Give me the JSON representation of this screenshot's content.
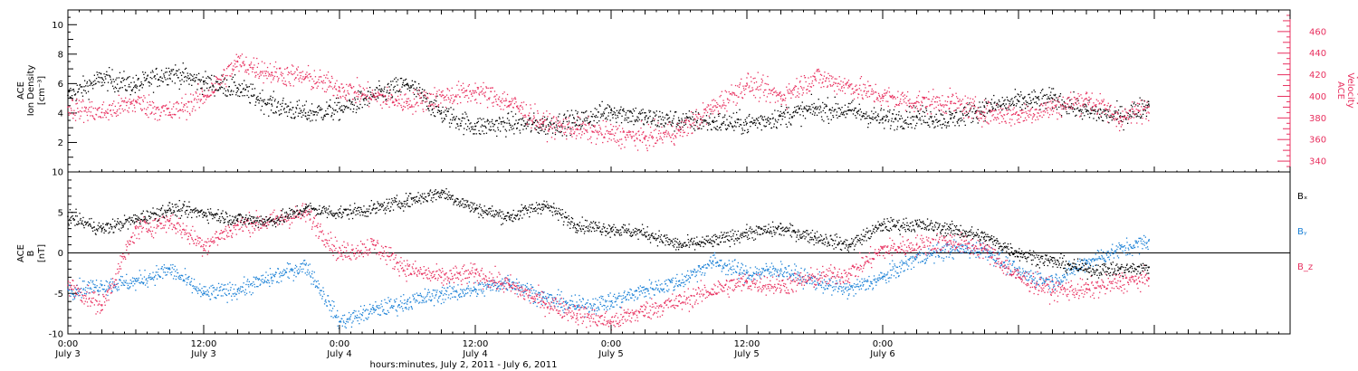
{
  "chart_data": [
    {
      "type": "scatter",
      "panel": "top",
      "ylabel_left": [
        "ACE",
        "Ion Density",
        "[cm⁻³]"
      ],
      "ylabel_right": [
        "ACE",
        "Velocity",
        "[km/s]"
      ],
      "left_axis": {
        "range": [
          0,
          11
        ],
        "ticks": [
          2,
          4,
          6,
          8,
          10
        ]
      },
      "right_axis": {
        "range": [
          330,
          480
        ],
        "ticks": [
          340,
          360,
          380,
          400,
          420,
          440,
          460
        ]
      },
      "series": [
        {
          "key": "density",
          "axis": "left",
          "color": "#000000",
          "x": [
            0,
            3,
            6,
            9,
            12,
            15,
            18,
            21,
            24,
            27,
            30,
            33,
            36,
            39,
            42,
            45,
            48,
            51,
            54,
            57,
            60,
            63,
            66,
            69,
            72,
            75,
            78,
            81,
            84,
            87,
            90,
            93,
            95.5
          ],
          "y": [
            5.2,
            6.4,
            5.9,
            6.8,
            6.1,
            5.7,
            4.6,
            4.0,
            4.3,
            5.2,
            6.0,
            4.0,
            3.1,
            3.3,
            3.2,
            3.5,
            4.2,
            3.7,
            3.5,
            3.4,
            3.3,
            3.8,
            4.3,
            4.2,
            3.6,
            3.8,
            3.6,
            4.4,
            4.8,
            5.0,
            4.1,
            3.8,
            4.6
          ]
        },
        {
          "key": "velocity",
          "axis": "right",
          "color": "#e8305f",
          "x": [
            0,
            3,
            6,
            9,
            12,
            15,
            18,
            21,
            24,
            27,
            30,
            33,
            36,
            39,
            42,
            45,
            48,
            51,
            54,
            57,
            60,
            63,
            66,
            69,
            72,
            75,
            78,
            81,
            84,
            87,
            90,
            93,
            95.5
          ],
          "y": [
            390,
            385,
            395,
            385,
            400,
            432,
            422,
            418,
            408,
            400,
            395,
            400,
            405,
            395,
            375,
            370,
            365,
            362,
            368,
            390,
            412,
            400,
            418,
            410,
            400,
            395,
            395,
            385,
            383,
            390,
            398,
            380,
            390
          ]
        }
      ]
    },
    {
      "type": "scatter",
      "panel": "bottom",
      "ylabel_left": [
        "ACE",
        "B",
        "[nT]"
      ],
      "y_axis": {
        "range": [
          -10,
          10
        ],
        "ticks": [
          -10,
          -5,
          0,
          5,
          10
        ]
      },
      "legend": [
        "Bₓ",
        "Bᵧ",
        "B_z"
      ],
      "series": [
        {
          "key": "bx",
          "name": "Bₓ",
          "color": "#000000",
          "x": [
            0,
            3,
            6,
            9,
            12,
            15,
            18,
            21,
            24,
            27,
            30,
            33,
            36,
            39,
            42,
            45,
            48,
            51,
            54,
            57,
            60,
            63,
            66,
            69,
            72,
            75,
            78,
            81,
            84,
            87,
            90,
            93,
            95.5
          ],
          "y": [
            4.5,
            3.0,
            4.2,
            5.5,
            5.0,
            4.2,
            4.0,
            5.5,
            5.0,
            5.5,
            6.5,
            7.5,
            5.5,
            4.5,
            6.0,
            3.5,
            3.0,
            2.5,
            1.0,
            1.5,
            2.5,
            3.0,
            2.0,
            1.0,
            3.5,
            3.5,
            3.0,
            2.0,
            0.0,
            -1.0,
            -2.0,
            -2.0,
            -1.8
          ]
        },
        {
          "key": "by",
          "name": "Bᵧ",
          "color": "#1a80d6",
          "x": [
            0,
            3,
            6,
            9,
            12,
            15,
            18,
            21,
            24,
            27,
            30,
            33,
            36,
            39,
            42,
            45,
            48,
            51,
            54,
            57,
            60,
            63,
            66,
            69,
            72,
            75,
            78,
            81,
            84,
            87,
            90,
            93,
            95.5
          ],
          "y": [
            -4.5,
            -4.0,
            -3.5,
            -2.0,
            -5.0,
            -4.5,
            -3.0,
            -1.5,
            -8.5,
            -7.0,
            -6.0,
            -5.0,
            -4.5,
            -3.5,
            -5.5,
            -6.5,
            -6.0,
            -4.5,
            -3.5,
            -1.0,
            -2.5,
            -2.0,
            -3.5,
            -4.5,
            -3.0,
            -0.5,
            0.5,
            0.5,
            -2.5,
            -3.5,
            -1.0,
            0.5,
            1.5
          ]
        },
        {
          "key": "bz",
          "name": "B_z",
          "color": "#e8305f",
          "x": [
            0,
            3,
            6,
            9,
            12,
            15,
            18,
            21,
            24,
            27,
            30,
            33,
            36,
            39,
            42,
            45,
            48,
            51,
            54,
            57,
            60,
            63,
            66,
            69,
            72,
            75,
            78,
            81,
            84,
            87,
            90,
            93,
            95.5
          ],
          "y": [
            -4.0,
            -6.5,
            3.0,
            4.0,
            1.0,
            3.5,
            4.0,
            5.0,
            0.0,
            1.0,
            -2.0,
            -3.0,
            -2.5,
            -4.0,
            -6.0,
            -7.5,
            -8.5,
            -7.0,
            -6.0,
            -4.5,
            -3.5,
            -4.0,
            -3.0,
            -2.5,
            0.5,
            1.0,
            1.5,
            0.5,
            -3.0,
            -4.5,
            -4.5,
            -3.5,
            -3.2
          ]
        }
      ]
    }
  ],
  "x_axis": {
    "range_hours": [
      0,
      108
    ],
    "ticks": [
      {
        "h": 0,
        "time": "0:00",
        "date": "July 3"
      },
      {
        "h": 12,
        "time": "12:00",
        "date": "July 3"
      },
      {
        "h": 24,
        "time": "0:00",
        "date": "July 4"
      },
      {
        "h": 36,
        "time": "12:00",
        "date": "July 4"
      },
      {
        "h": 48,
        "time": "0:00",
        "date": "July 5"
      },
      {
        "h": 60,
        "time": "12:00",
        "date": "July 5"
      },
      {
        "h": 72,
        "time": "0:00",
        "date": "July 6"
      }
    ],
    "xlabel": "hours:minutes, July  2, 2011 - July  6, 2011"
  }
}
